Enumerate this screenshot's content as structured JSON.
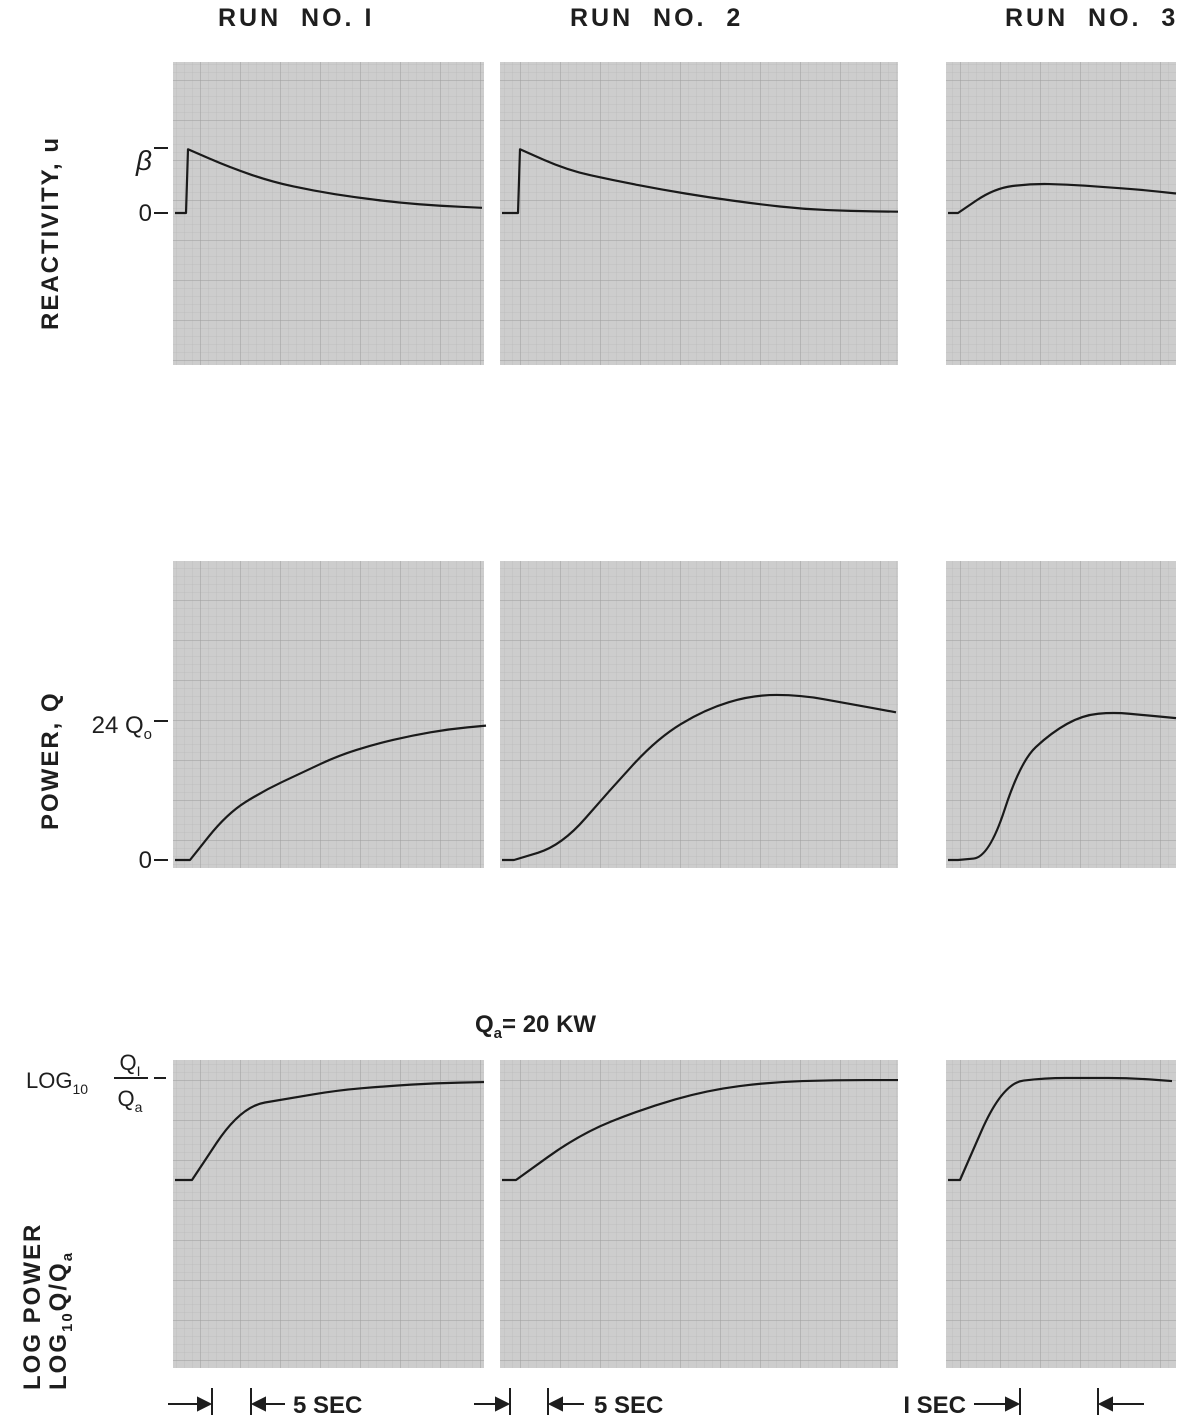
{
  "runs": [
    "RUN  NO. I",
    "RUN  NO.  2",
    "RUN  NO.  3"
  ],
  "rows": {
    "reactivity": {
      "ylabel": "REACTIVITY,  u",
      "ticks": [
        "β",
        "0"
      ]
    },
    "power": {
      "ylabel": "POWER,  Q",
      "ticks": [
        "24 Q",
        "0"
      ],
      "tick_subscript": "o"
    },
    "log_power": {
      "ylabel_line1": "LOG   POWER",
      "ylabel_line2": "LOG",
      "ylabel_sub": "10",
      "ylabel_tail": "Q/Q",
      "ylabel_tail_sub": "a",
      "tick_prefix": "LOG",
      "tick_sub": "10",
      "tick_num": "Q",
      "tick_num_sub": "I",
      "tick_den": "Q",
      "tick_den_sub": "a",
      "annotation_q": "Q",
      "annotation_sub": "a",
      "annotation_rest": "= 20 KW"
    }
  },
  "time_scales": [
    "5  SEC",
    "5  SEC",
    "I  SEC"
  ],
  "colors": {
    "paper": "#cdcdcd",
    "grid": "#a9a9a9",
    "trace": "#1a1a1a"
  },
  "chart_data": [
    {
      "type": "line",
      "title": "RUN NO. 1",
      "ylabel": "REACTIVITY, u",
      "series": [
        {
          "values": [
            0.98,
            0.7,
            0.48,
            0.34,
            0.24,
            0.16,
            0.11,
            0.08
          ]
        }
      ],
      "y_ticks": [
        "β",
        "0"
      ]
    },
    {
      "type": "line",
      "title": "RUN NO. 2",
      "ylabel": "REACTIVITY, u",
      "series": [
        {
          "values": [
            0.98,
            0.66,
            0.5,
            0.36,
            0.24,
            0.14,
            0.06,
            0.03,
            0.02
          ]
        }
      ],
      "y_ticks": [
        "β",
        "0"
      ]
    },
    {
      "type": "line",
      "title": "RUN NO. 3",
      "ylabel": "REACTIVITY, u",
      "series": [
        {
          "values": [
            0.0,
            0.38,
            0.45,
            0.44,
            0.4,
            0.36,
            0.3
          ]
        }
      ],
      "y_ticks": [
        "β",
        "0"
      ]
    },
    {
      "type": "line",
      "title": "RUN NO. 1",
      "ylabel": "POWER, Q",
      "series": [
        {
          "values": [
            0.0,
            8.0,
            12.0,
            15.0,
            18.0,
            20.0,
            21.5,
            22.6,
            23.2
          ]
        }
      ],
      "y_ticks": [
        "24 Q_o",
        "0"
      ]
    },
    {
      "type": "line",
      "title": "RUN NO. 2",
      "ylabel": "POWER, Q",
      "series": [
        {
          "values": [
            0.0,
            2.5,
            12.0,
            21.0,
            26.0,
            28.5,
            28.5,
            27.0,
            25.5
          ]
        }
      ],
      "y_ticks": [
        "24 Q_o",
        "0"
      ]
    },
    {
      "type": "line",
      "title": "RUN NO. 3",
      "ylabel": "POWER, Q",
      "series": [
        {
          "values": [
            0.0,
            0.5,
            17.0,
            22.0,
            25.0,
            25.5,
            25.0,
            24.5
          ]
        }
      ],
      "y_ticks": [
        "24 Q_o",
        "0"
      ]
    },
    {
      "type": "line",
      "title": "RUN NO. 1",
      "ylabel": "LOG POWER LOG10 Q/Qa",
      "series": [
        {
          "values": [
            0.0,
            0.72,
            0.8,
            0.88,
            0.92,
            0.95,
            0.96
          ]
        }
      ],
      "y_ticks": [
        "LOG10 Q1/Qa"
      ],
      "annotation": "Qa = 20 KW",
      "time_scale": "5 SEC"
    },
    {
      "type": "line",
      "title": "RUN NO. 2",
      "ylabel": "LOG POWER LOG10 Q/Qa",
      "series": [
        {
          "values": [
            0.0,
            0.45,
            0.7,
            0.88,
            0.96,
            0.98,
            0.98
          ]
        }
      ],
      "y_ticks": [
        "LOG10 Q1/Qa"
      ],
      "annotation": "Qa = 20 KW",
      "time_scale": "5 SEC"
    },
    {
      "type": "line",
      "title": "RUN NO. 3",
      "ylabel": "LOG POWER LOG10 Q/Qa",
      "series": [
        {
          "values": [
            0.0,
            0.95,
            1.0,
            1.0,
            1.0,
            0.97
          ]
        }
      ],
      "y_ticks": [
        "LOG10 Q1/Qa"
      ],
      "annotation": "Qa = 20 KW",
      "time_scale": "1 SEC"
    }
  ]
}
